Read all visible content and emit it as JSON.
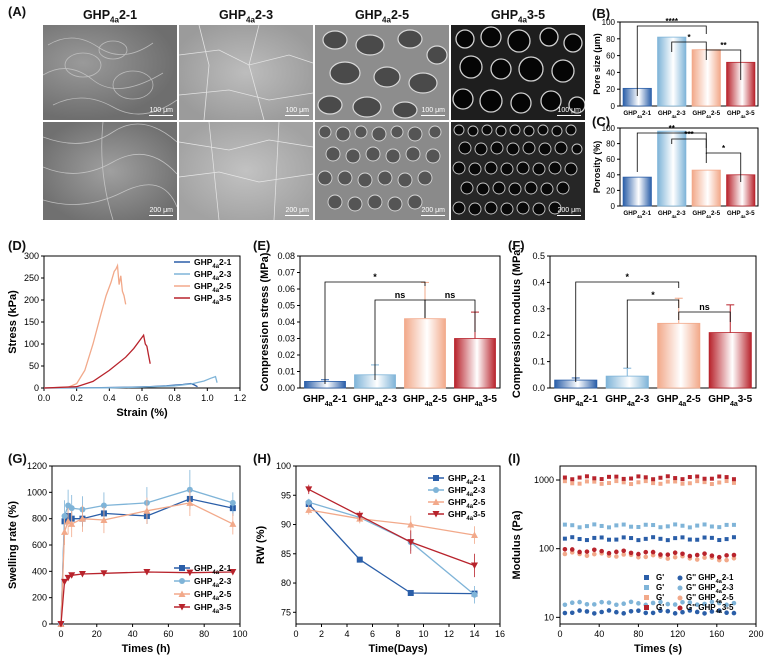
{
  "panels": {
    "A": "(A)",
    "B": "(B)",
    "C": "(C)",
    "D": "(D)",
    "E": "(E)",
    "F": "(F)",
    "G": "(G)",
    "H": "(H)",
    "I": "(I)"
  },
  "sem": {
    "columns": [
      {
        "base": "GHP",
        "sub": "4a",
        "tail": "2-1"
      },
      {
        "base": "GHP",
        "sub": "4a",
        "tail": "2-3"
      },
      {
        "base": "GHP",
        "sub": "4a",
        "tail": "2-5"
      },
      {
        "base": "GHP",
        "sub": "4a",
        "tail": "3-5"
      }
    ],
    "scale_top": "100 μm",
    "scale_bottom": "200 μm"
  },
  "colors": {
    "c21": "#2a5ea8",
    "c23": "#7fb4d8",
    "c25": "#f2a98a",
    "c35": "#b8232c"
  },
  "chart_data": [
    {
      "id": "B",
      "type": "bar",
      "title": "",
      "ylabel": "Pore size (μm)",
      "ylim": [
        0,
        100
      ],
      "yticks": [
        0,
        20,
        40,
        60,
        80,
        100
      ],
      "categories": [
        "GHP4a2-1",
        "GHP4a2-3",
        "GHP4a2-5",
        "GHP4a3-5"
      ],
      "values": [
        21,
        82,
        67,
        52
      ],
      "significance": [
        {
          "from": 0,
          "to": 2,
          "label": "****"
        },
        {
          "from": 1,
          "to": 2,
          "label": "*"
        },
        {
          "from": 2,
          "to": 3,
          "label": "**"
        }
      ]
    },
    {
      "id": "C",
      "type": "bar",
      "ylabel": "Porosity (%)",
      "ylim": [
        0,
        100
      ],
      "yticks": [
        0,
        20,
        40,
        60,
        80,
        100
      ],
      "categories": [
        "GHP4a2-1",
        "GHP4a2-3",
        "GHP4a2-5",
        "GHP4a3-5"
      ],
      "values": [
        37,
        96,
        46,
        40
      ],
      "significance": [
        {
          "from": 0,
          "to": 2,
          "label": "**"
        },
        {
          "from": 1,
          "to": 2,
          "label": "***"
        },
        {
          "from": 2,
          "to": 3,
          "label": "*"
        }
      ]
    },
    {
      "id": "D",
      "type": "line",
      "xlabel": "Strain (%)",
      "ylabel": "Stress (kPa)",
      "xlim": [
        0,
        1.2
      ],
      "ylim": [
        0,
        300
      ],
      "xticks": [
        0.0,
        0.2,
        0.4,
        0.6,
        0.8,
        1.0,
        1.2
      ],
      "yticks": [
        0,
        50,
        100,
        150,
        200,
        250,
        300
      ],
      "series": [
        {
          "name": "GHP4a2-1",
          "x": [
            0,
            0.3,
            0.5,
            0.65,
            0.75,
            0.85,
            0.9,
            0.92,
            0.94
          ],
          "y": [
            0,
            0.5,
            1.5,
            3,
            5,
            8,
            10,
            7,
            3
          ]
        },
        {
          "name": "GHP4a2-3",
          "x": [
            0,
            0.4,
            0.6,
            0.8,
            0.9,
            0.98,
            1.02,
            1.05,
            1.06
          ],
          "y": [
            0,
            0.5,
            2,
            5,
            9,
            16,
            22,
            26,
            12
          ]
        },
        {
          "name": "GHP4a2-5",
          "x": [
            0,
            0.15,
            0.2,
            0.25,
            0.3,
            0.35,
            0.38,
            0.41,
            0.43,
            0.44,
            0.45,
            0.46,
            0.47,
            0.48,
            0.49,
            0.5
          ],
          "y": [
            0,
            2,
            10,
            40,
            100,
            170,
            210,
            240,
            265,
            270,
            278,
            235,
            255,
            220,
            210,
            190
          ]
        },
        {
          "name": "GHP4a3-5",
          "x": [
            0,
            0.2,
            0.3,
            0.4,
            0.5,
            0.55,
            0.6,
            0.61,
            0.62,
            0.63,
            0.64,
            0.65
          ],
          "y": [
            0,
            3,
            15,
            40,
            70,
            90,
            115,
            120,
            100,
            95,
            75,
            55
          ]
        }
      ]
    },
    {
      "id": "E",
      "type": "bar",
      "ylabel": "Compression stress (MPa)",
      "ylim": [
        0,
        0.08
      ],
      "yticks": [
        0.0,
        0.01,
        0.02,
        0.03,
        0.04,
        0.05,
        0.06,
        0.07,
        0.08
      ],
      "categories": [
        "GHP4a2-1",
        "GHP4a2-3",
        "GHP4a2-5",
        "GHP4a3-5"
      ],
      "values": [
        0.004,
        0.008,
        0.042,
        0.03
      ],
      "errors": [
        0.001,
        0.006,
        0.022,
        0.016
      ],
      "significance": [
        {
          "from": 0,
          "to": 2,
          "label": "*"
        },
        {
          "from": 1,
          "to": 2,
          "label": "ns"
        },
        {
          "from": 2,
          "to": 3,
          "label": "ns"
        }
      ]
    },
    {
      "id": "F",
      "type": "bar",
      "ylabel": "Compression modulus (MPa)",
      "ylim": [
        0,
        0.5
      ],
      "yticks": [
        0.0,
        0.1,
        0.2,
        0.3,
        0.4,
        0.5
      ],
      "categories": [
        "GHP4a2-1",
        "GHP4a2-3",
        "GHP4a2-5",
        "GHP4a3-5"
      ],
      "values": [
        0.03,
        0.045,
        0.245,
        0.21
      ],
      "errors": [
        0.008,
        0.03,
        0.095,
        0.105
      ],
      "significance": [
        {
          "from": 0,
          "to": 2,
          "label": "*"
        },
        {
          "from": 1,
          "to": 2,
          "label": "*"
        },
        {
          "from": 2,
          "to": 3,
          "label": "ns"
        }
      ]
    },
    {
      "id": "G",
      "type": "line",
      "xlabel": "Times (h)",
      "ylabel": "Swelling rate (%)",
      "xlim": [
        -5,
        100
      ],
      "ylim": [
        0,
        1200
      ],
      "xticks": [
        0,
        20,
        40,
        60,
        80,
        100
      ],
      "yticks": [
        0,
        200,
        400,
        600,
        800,
        1000,
        1200
      ],
      "series": [
        {
          "name": "GHP4a2-1",
          "x": [
            0,
            2,
            4,
            6,
            12,
            24,
            48,
            72,
            96
          ],
          "y": [
            0,
            780,
            820,
            800,
            800,
            840,
            820,
            950,
            880
          ],
          "err": [
            0,
            60,
            60,
            60,
            60,
            60,
            60,
            60,
            60
          ]
        },
        {
          "name": "GHP4a2-3",
          "x": [
            0,
            2,
            4,
            6,
            12,
            24,
            48,
            72,
            96
          ],
          "y": [
            0,
            820,
            900,
            880,
            870,
            900,
            920,
            1020,
            920
          ],
          "err": [
            0,
            120,
            120,
            100,
            100,
            100,
            120,
            150,
            80
          ]
        },
        {
          "name": "GHP4a2-5",
          "x": [
            0,
            2,
            4,
            6,
            12,
            24,
            48,
            72,
            96
          ],
          "y": [
            0,
            700,
            780,
            760,
            800,
            790,
            860,
            920,
            760
          ],
          "err": [
            0,
            100,
            100,
            100,
            100,
            100,
            100,
            100,
            80
          ]
        },
        {
          "name": "GHP4a3-5",
          "x": [
            0,
            2,
            4,
            6,
            12,
            24,
            48,
            72,
            96
          ],
          "y": [
            0,
            320,
            350,
            370,
            380,
            385,
            395,
            390,
            395
          ],
          "err": [
            0,
            20,
            20,
            20,
            20,
            20,
            20,
            20,
            15
          ]
        }
      ]
    },
    {
      "id": "H",
      "type": "line",
      "xlabel": "Time(Days)",
      "ylabel": "RW (%)",
      "xlim": [
        0,
        16
      ],
      "ylim": [
        73,
        100
      ],
      "xticks": [
        0,
        2,
        4,
        6,
        8,
        10,
        12,
        14,
        16
      ],
      "yticks": [
        75,
        80,
        85,
        90,
        95,
        100
      ],
      "series": [
        {
          "name": "GHP4a2-1",
          "x": [
            1,
            5,
            9,
            14
          ],
          "y": [
            93.5,
            84,
            78.3,
            78.2
          ],
          "err": [
            0.4,
            0.3,
            0.3,
            0.3
          ]
        },
        {
          "name": "GHP4a2-3",
          "x": [
            1,
            5,
            9,
            14
          ],
          "y": [
            93.8,
            91.2,
            87,
            78
          ],
          "err": [
            0.6,
            0.8,
            1.5,
            1.5
          ]
        },
        {
          "name": "GHP4a2-5",
          "x": [
            1,
            5,
            9,
            14
          ],
          "y": [
            92.5,
            91,
            90,
            88.2
          ],
          "err": [
            0.8,
            0.8,
            1.5,
            1.5
          ]
        },
        {
          "name": "GHP4a3-5",
          "x": [
            1,
            5,
            9,
            14
          ],
          "y": [
            96,
            91.5,
            87,
            83
          ],
          "err": [
            0.8,
            0.8,
            2,
            2
          ]
        }
      ]
    },
    {
      "id": "I",
      "type": "scatter",
      "xlabel": "Times (s)",
      "ylabel": "Modulus (Pa)",
      "yscale": "log",
      "xlim": [
        0,
        200
      ],
      "ylim": [
        8,
        1600
      ],
      "xticks": [
        0,
        40,
        80,
        120,
        160,
        200
      ],
      "yticks": [
        10,
        100,
        1000
      ],
      "series": [
        {
          "name": "G' GHP4a2-1",
          "level": 140
        },
        {
          "name": "G' GHP4a2-3",
          "level": 215
        },
        {
          "name": "G' GHP4a2-5",
          "level": 920
        },
        {
          "name": "G' GHP4a3-5",
          "level": 1080
        },
        {
          "name": "G'' GHP4a2-1",
          "level": 12
        },
        {
          "name": "G'' GHP4a2-3",
          "level": 16
        },
        {
          "name": "G'' GHP4a2-5",
          "level": 85
        },
        {
          "name": "G'' GHP4a3-5",
          "level": 95
        }
      ]
    }
  ]
}
